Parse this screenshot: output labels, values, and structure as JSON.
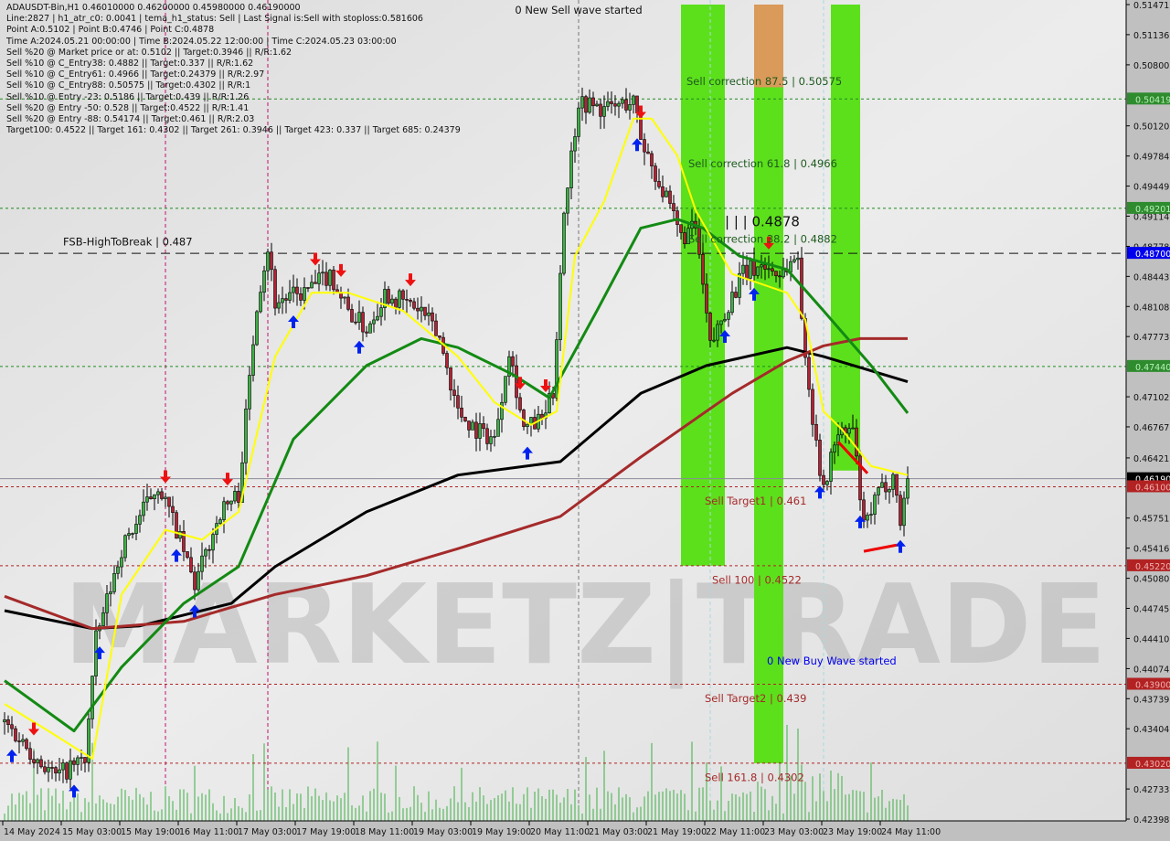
{
  "header": {
    "symbol_line": "ADAUSDT-Bin,H1  0.46010000 0.46200000 0.45980000 0.46190000",
    "lines": [
      "Line:2827 | h1_atr_c0: 0.0041 | tema_h1_status: Sell | Last Signal is:Sell with stoploss:0.581606",
      "Point A:0.5102 | Point B:0.4746 | Point C:0.4878",
      "Time A:2024.05.21 00:00:00 | Time B:2024.05.22 12:00:00 | Time C:2024.05.23 03:00:00",
      "Sell %20 @ Market price or at: 0.5102 || Target:0.3946 || R/R:1.62",
      "Sell %10 @ C_Entry38: 0.4882 || Target:0.337 || R/R:1.62",
      "Sell %10 @ C_Entry61: 0.4966 || Target:0.24379 || R/R:2.97",
      "Sell %10 @ C_Entry88: 0.50575 || Target:0.4302 || R/R:1",
      "Sell %10 @ Entry -23: 0.5186 || Target:0.439 || R/R:1.26",
      "Sell %20 @ Entry -50: 0.528 || Target:0.4522 || R/R:1.41",
      "Sell %20 @ Entry -88: 0.54174 || Target:0.461 || R/R:2.03",
      "Target100: 0.4522 || Target 161: 0.4302 || Target 261: 0.3946 || Target 423: 0.337 || Target 685: 0.24379"
    ]
  },
  "logo": "MARKETZ|TRADE",
  "chart_data": {
    "type": "candlestick",
    "symbol": "ADAUSDT-Bin",
    "timeframe": "H1",
    "ylim": [
      0.42398,
      0.51471
    ],
    "xlim": [
      "2024-05-14 11:00",
      "2024-05-24 18:00"
    ],
    "colors": {
      "up": "#3cb043",
      "down": "#b22234",
      "tema": "#ffff00",
      "ma_green": "#138a13",
      "ma_black": "#000000",
      "ma_brown": "#a52a2a",
      "band": "#5ce01c",
      "band_top": "#d99a5a",
      "support": "#1e8a1e",
      "target": "#b22222",
      "fsb": "#0000cc"
    },
    "y_ticks": [
      "0.51471",
      "0.51136",
      "0.50800",
      "0.50120",
      "0.49784",
      "0.49449",
      "0.49114",
      "0.48778",
      "0.48443",
      "0.48108",
      "0.47773",
      "0.47102",
      "0.46767",
      "0.46421",
      "0.45751",
      "0.45416",
      "0.45080",
      "0.44745",
      "0.44410",
      "0.44074",
      "0.43739",
      "0.43404",
      "0.42733",
      "0.42398"
    ],
    "x_ticks": [
      "14 May 2024",
      "15 May 03:00",
      "15 May 19:00",
      "16 May 11:00",
      "17 May 03:00",
      "17 May 19:00",
      "18 May 11:00",
      "19 May 03:00",
      "19 May 19:00",
      "20 May 11:00",
      "21 May 03:00",
      "21 May 19:00",
      "22 May 11:00",
      "23 May 03:00",
      "23 May 19:00",
      "24 May 11:00"
    ],
    "close_path": [
      [
        "2024-05-14 11:00",
        0.4348
      ],
      [
        "2024-05-14 20:00",
        0.4307
      ],
      [
        "2024-05-15 01:00",
        0.4287
      ],
      [
        "2024-05-15 09:00",
        0.4307
      ],
      [
        "2024-05-15 12:00",
        0.4439
      ],
      [
        "2024-05-15 19:00",
        0.4541
      ],
      [
        "2024-05-16 05:00",
        0.4613
      ],
      [
        "2024-05-16 10:00",
        0.4562
      ],
      [
        "2024-05-16 15:00",
        0.45
      ],
      [
        "2024-05-16 22:00",
        0.4582
      ],
      [
        "2024-05-17 03:00",
        0.4602
      ],
      [
        "2024-05-17 08:00",
        0.4816
      ],
      [
        "2024-05-17 11:00",
        0.4877
      ],
      [
        "2024-05-17 13:00",
        0.4816
      ],
      [
        "2024-05-17 21:00",
        0.4826
      ],
      [
        "2024-05-18 04:00",
        0.4847
      ],
      [
        "2024-05-18 09:00",
        0.4806
      ],
      [
        "2024-05-18 14:00",
        0.4786
      ],
      [
        "2024-05-18 19:00",
        0.4826
      ],
      [
        "2024-05-19 00:00",
        0.4816
      ],
      [
        "2024-05-19 05:00",
        0.4806
      ],
      [
        "2024-05-19 10:00",
        0.4775
      ],
      [
        "2024-05-19 15:00",
        0.4694
      ],
      [
        "2024-05-19 20:00",
        0.4674
      ],
      [
        "2024-05-20 01:00",
        0.4663
      ],
      [
        "2024-05-20 05:00",
        0.4765
      ],
      [
        "2024-05-20 09:00",
        0.4674
      ],
      [
        "2024-05-20 14:00",
        0.4684
      ],
      [
        "2024-05-20 17:00",
        0.4714
      ],
      [
        "2024-05-20 20:00",
        0.4918
      ],
      [
        "2024-05-21 00:00",
        0.504
      ],
      [
        "2024-05-21 07:00",
        0.503
      ],
      [
        "2024-05-21 15:00",
        0.504
      ],
      [
        "2024-05-21 17:00",
        0.4999
      ],
      [
        "2024-05-21 22:00",
        0.4949
      ],
      [
        "2024-05-22 04:00",
        0.4888
      ],
      [
        "2024-05-22 08:00",
        0.4898
      ],
      [
        "2024-05-22 12:00",
        0.4765
      ],
      [
        "2024-05-22 16:00",
        0.4806
      ],
      [
        "2024-05-22 21:00",
        0.4847
      ],
      [
        "2024-05-23 02:00",
        0.4857
      ],
      [
        "2024-05-23 07:00",
        0.4847
      ],
      [
        "2024-05-23 12:00",
        0.4867
      ],
      [
        "2024-05-23 14:00",
        0.4745
      ],
      [
        "2024-05-23 17:00",
        0.4663
      ],
      [
        "2024-05-23 19:00",
        0.4602
      ],
      [
        "2024-05-23 22:00",
        0.4663
      ],
      [
        "2024-05-24 03:00",
        0.4674
      ],
      [
        "2024-05-24 06:00",
        0.4562
      ],
      [
        "2024-05-24 10:00",
        0.4602
      ],
      [
        "2024-05-24 14:00",
        0.4623
      ],
      [
        "2024-05-24 16:00",
        0.4572
      ],
      [
        "2024-05-24 18:00",
        0.4619
      ]
    ],
    "series": [
      {
        "key": "ma_black",
        "points": [
          [
            "2024-05-14 11:00",
            0.4472
          ],
          [
            "2024-05-15 11:00",
            0.4452
          ],
          [
            "2024-05-16 00:00",
            0.4455
          ],
          [
            "2024-05-17 01:00",
            0.448
          ],
          [
            "2024-05-17 13:00",
            0.4521
          ],
          [
            "2024-05-18 14:00",
            0.4582
          ],
          [
            "2024-05-19 15:00",
            0.4623
          ],
          [
            "2024-05-20 19:00",
            0.4638
          ],
          [
            "2024-05-21 17:00",
            0.4714
          ],
          [
            "2024-05-22 11:00",
            0.4745
          ],
          [
            "2024-05-23 09:00",
            0.4765
          ],
          [
            "2024-05-23 19:00",
            0.4755
          ],
          [
            "2024-05-24 18:00",
            0.4727
          ]
        ]
      },
      {
        "key": "ma_brown",
        "points": [
          [
            "2024-05-14 11:00",
            0.4488
          ],
          [
            "2024-05-15 11:00",
            0.4452
          ],
          [
            "2024-05-16 12:00",
            0.446
          ],
          [
            "2024-05-17 13:00",
            0.449
          ],
          [
            "2024-05-18 14:00",
            0.4511
          ],
          [
            "2024-05-19 15:00",
            0.4541
          ],
          [
            "2024-05-20 19:00",
            0.4577
          ],
          [
            "2024-05-21 17:00",
            0.4643
          ],
          [
            "2024-05-22 18:00",
            0.4714
          ],
          [
            "2024-05-23 09:00",
            0.475
          ],
          [
            "2024-05-23 19:00",
            0.4767
          ],
          [
            "2024-05-24 05:00",
            0.4775
          ],
          [
            "2024-05-24 18:00",
            0.4775
          ]
        ]
      },
      {
        "key": "ma_green",
        "points": [
          [
            "2024-05-14 11:00",
            0.4394
          ],
          [
            "2024-05-15 06:00",
            0.4338
          ],
          [
            "2024-05-15 19:00",
            0.4409
          ],
          [
            "2024-05-16 12:00",
            0.448
          ],
          [
            "2024-05-17 03:00",
            0.4521
          ],
          [
            "2024-05-17 18:00",
            0.4663
          ],
          [
            "2024-05-18 14:00",
            0.4745
          ],
          [
            "2024-05-19 05:00",
            0.4775
          ],
          [
            "2024-05-19 15:00",
            0.4765
          ],
          [
            "2024-05-20 06:00",
            0.4735
          ],
          [
            "2024-05-20 16:00",
            0.4709
          ],
          [
            "2024-05-21 05:00",
            0.4806
          ],
          [
            "2024-05-21 17:00",
            0.4898
          ],
          [
            "2024-05-22 03:00",
            0.4908
          ],
          [
            "2024-05-22 10:00",
            0.4898
          ],
          [
            "2024-05-22 20:00",
            0.4867
          ],
          [
            "2024-05-23 09:00",
            0.4852
          ],
          [
            "2024-05-23 19:00",
            0.4806
          ],
          [
            "2024-05-24 08:00",
            0.4745
          ],
          [
            "2024-05-24 18:00",
            0.4692
          ]
        ]
      },
      {
        "key": "tema",
        "points": [
          [
            "2024-05-14 11:00",
            0.4368
          ],
          [
            "2024-05-14 23:00",
            0.4338
          ],
          [
            "2024-05-15 11:00",
            0.4307
          ],
          [
            "2024-05-15 19:00",
            0.449
          ],
          [
            "2024-05-16 07:00",
            0.4562
          ],
          [
            "2024-05-16 17:00",
            0.4551
          ],
          [
            "2024-05-17 03:00",
            0.4582
          ],
          [
            "2024-05-17 13:00",
            0.4755
          ],
          [
            "2024-05-17 23:00",
            0.4826
          ],
          [
            "2024-05-18 09:00",
            0.4826
          ],
          [
            "2024-05-19 00:00",
            0.4806
          ],
          [
            "2024-05-19 15:00",
            0.4755
          ],
          [
            "2024-05-20 01:00",
            0.4704
          ],
          [
            "2024-05-20 11:00",
            0.4679
          ],
          [
            "2024-05-20 18:00",
            0.4694
          ],
          [
            "2024-05-20 23:00",
            0.4867
          ],
          [
            "2024-05-21 07:00",
            0.4928
          ],
          [
            "2024-05-21 15:00",
            0.502
          ],
          [
            "2024-05-21 20:00",
            0.502
          ],
          [
            "2024-05-22 03:00",
            0.4979
          ],
          [
            "2024-05-22 08:00",
            0.4918
          ],
          [
            "2024-05-22 18:00",
            0.4847
          ],
          [
            "2024-05-23 09:00",
            0.4826
          ],
          [
            "2024-05-23 14:00",
            0.4796
          ],
          [
            "2024-05-23 19:00",
            0.4694
          ],
          [
            "2024-05-24 00:00",
            0.4674
          ],
          [
            "2024-05-24 08:00",
            0.4633
          ],
          [
            "2024-05-24 18:00",
            0.4623
          ]
        ]
      }
    ],
    "levels": [
      {
        "price": 0.50419,
        "label": "0.50419",
        "style": "support"
      },
      {
        "price": 0.49201,
        "label": "0.49201",
        "style": "support"
      },
      {
        "price": 0.4744,
        "label": "0.47440",
        "style": "support"
      },
      {
        "price": 0.487,
        "label": "0.48700",
        "style": "fsb"
      },
      {
        "price": 0.4619,
        "label": "0.46190",
        "style": "current"
      },
      {
        "price": 0.461,
        "label": "0.46100",
        "style": "target"
      },
      {
        "price": 0.4522,
        "label": "0.45220",
        "style": "target"
      },
      {
        "price": 0.439,
        "label": "0.43900",
        "style": "target"
      },
      {
        "price": 0.4302,
        "label": "0.43020",
        "style": "target"
      }
    ],
    "annotations": [
      {
        "text": "0 New Sell wave started",
        "time": "2024-05-21 00:00",
        "price": 0.5137,
        "color": "#111111",
        "anchor": "middle"
      },
      {
        "text": "FSB-HighToBreak | 0.487",
        "time": "2024-05-14 27:00",
        "price": 0.4879,
        "color": "#111111",
        "anchor": "start"
      },
      {
        "text": "Sell correction 87.5 | 0.50575",
        "time": "2024-05-22 05:30",
        "price": 0.50575,
        "color": "#1e5a1e",
        "anchor": "start"
      },
      {
        "text": "Sell correction 61.8 | 0.4966",
        "time": "2024-05-22 06:00",
        "price": 0.4966,
        "color": "#1e5a1e",
        "anchor": "start"
      },
      {
        "text": "Sell correction 38.2 | 0.4882",
        "time": "2024-05-22 06:00",
        "price": 0.4882,
        "color": "#1e5a1e",
        "anchor": "start"
      },
      {
        "text": "| | | 0.4878",
        "time": "2024-05-22 16:00",
        "price": 0.49,
        "color": "#111111",
        "anchor": "start",
        "big": true
      },
      {
        "text": "Sell Target1 | 0.461",
        "time": "2024-05-22 10:30",
        "price": 0.459,
        "color": "#a52a2a",
        "anchor": "start"
      },
      {
        "text": "Sell 100 | 0.4522",
        "time": "2024-05-22 12:30",
        "price": 0.4502,
        "color": "#a52a2a",
        "anchor": "start"
      },
      {
        "text": "0 New Buy Wave started",
        "time": "2024-05-23 03:30",
        "price": 0.4412,
        "color": "#0000ee",
        "anchor": "start"
      },
      {
        "text": "Sell Target2 | 0.439",
        "time": "2024-05-22 10:30",
        "price": 0.437,
        "color": "#a52a2a",
        "anchor": "start"
      },
      {
        "text": "Sell 161.8 | 0.4302",
        "time": "2024-05-22 10:30",
        "price": 0.4282,
        "color": "#a52a2a",
        "anchor": "start"
      }
    ],
    "signals": [
      {
        "type": "buy",
        "time": "2024-05-14 13:00"
      },
      {
        "type": "sell",
        "time": "2024-05-14 19:00"
      },
      {
        "type": "buy",
        "time": "2024-05-15 06:00"
      },
      {
        "type": "buy",
        "time": "2024-05-15 13:00"
      },
      {
        "type": "buy",
        "time": "2024-05-16 10:00"
      },
      {
        "type": "buy",
        "time": "2024-05-16 15:00"
      },
      {
        "type": "sell",
        "time": "2024-05-16 07:00"
      },
      {
        "type": "sell",
        "time": "2024-05-17 00:00"
      },
      {
        "type": "buy",
        "time": "2024-05-17 18:00"
      },
      {
        "type": "sell",
        "time": "2024-05-18 00:00"
      },
      {
        "type": "sell",
        "time": "2024-05-18 07:00"
      },
      {
        "type": "buy",
        "time": "2024-05-18 12:00"
      },
      {
        "type": "sell",
        "time": "2024-05-19 02:00"
      },
      {
        "type": "sell",
        "time": "2024-05-20 08:00"
      },
      {
        "type": "buy",
        "time": "2024-05-20 10:00"
      },
      {
        "type": "sell",
        "time": "2024-05-20 15:00"
      },
      {
        "type": "sell",
        "time": "2024-05-21 17:00"
      },
      {
        "type": "buy",
        "time": "2024-05-21 16:00"
      },
      {
        "type": "buy",
        "time": "2024-05-22 16:00"
      },
      {
        "type": "buy",
        "time": "2024-05-23 00:00"
      },
      {
        "type": "sell",
        "time": "2024-05-23 04:00"
      },
      {
        "type": "buy",
        "time": "2024-05-23 18:00"
      },
      {
        "type": "buy",
        "time": "2024-05-24 05:00"
      },
      {
        "type": "buy",
        "time": "2024-05-24 16:00"
      }
    ],
    "zones": [
      {
        "from": "2024-05-22 04:00",
        "to": "2024-05-22 16:00",
        "top": 0.51471,
        "bottom": 0.4522
      },
      {
        "from": "2024-05-23 00:00",
        "to": "2024-05-23 08:00",
        "top": 0.51471,
        "bottom": 0.4302,
        "cap_bottom": 0.5055
      },
      {
        "from": "2024-05-23 21:00",
        "to": "2024-05-24 05:00",
        "top": 0.51471,
        "bottom": 0.4628
      }
    ]
  }
}
